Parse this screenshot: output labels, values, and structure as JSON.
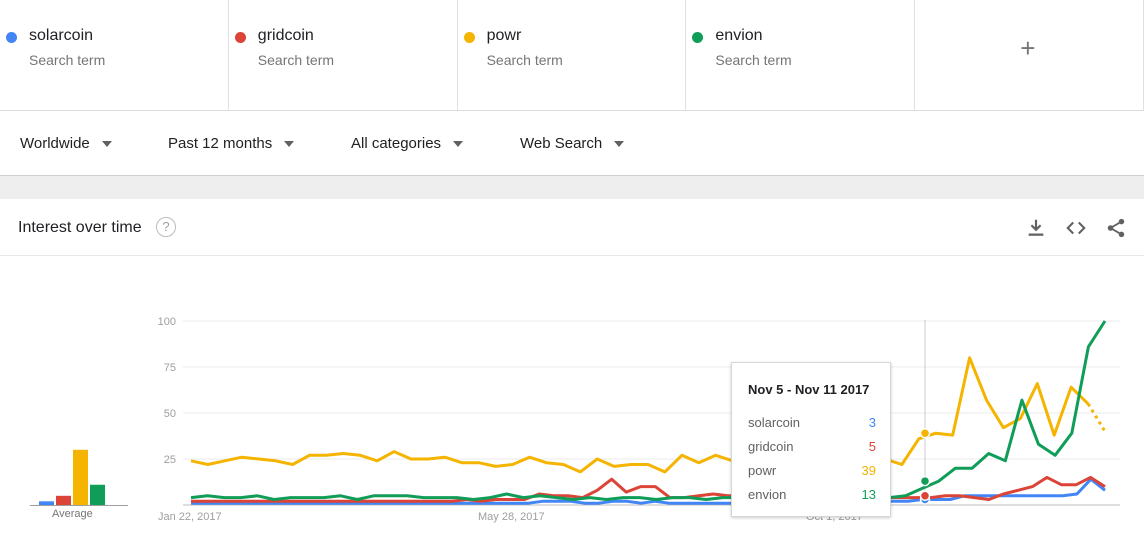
{
  "terms": [
    {
      "name": "solarcoin",
      "sub": "Search term",
      "color": "#4285f4"
    },
    {
      "name": "gridcoin",
      "sub": "Search term",
      "color": "#db4437"
    },
    {
      "name": "powr",
      "sub": "Search term",
      "color": "#f4b400"
    },
    {
      "name": "envion",
      "sub": "Search term",
      "color": "#0f9d58"
    }
  ],
  "add_term_label": "+",
  "filters": {
    "region": "Worldwide",
    "time": "Past 12 months",
    "category": "All categories",
    "search_type": "Web Search"
  },
  "card": {
    "title": "Interest over time",
    "help_icon": "question-circle-icon",
    "actions": [
      "download-icon",
      "embed-code-icon",
      "share-icon"
    ]
  },
  "average": {
    "label": "Average",
    "values": {
      "solarcoin": 2,
      "gridcoin": 5,
      "powr": 30,
      "envion": 11
    }
  },
  "chart_data": {
    "type": "line",
    "title": "",
    "xlabel": "",
    "ylabel": "",
    "ylim": [
      0,
      100
    ],
    "yticks": [
      "100",
      "75",
      "50",
      "25"
    ],
    "xticks": [
      "Jan 22, 2017",
      "May 28, 2017",
      "Oct 1, 2017"
    ],
    "grid": true,
    "series": [
      {
        "name": "solarcoin",
        "color": "#4285f4",
        "values": [
          1,
          1,
          1,
          1,
          1,
          1,
          1,
          1,
          1,
          1,
          1,
          1,
          1,
          1,
          1,
          1,
          1,
          1,
          1,
          1,
          1,
          1,
          1,
          1,
          1,
          2,
          2,
          2,
          1,
          1,
          2,
          2,
          1,
          2,
          1,
          1,
          1,
          1,
          1,
          1,
          1,
          1,
          1,
          1,
          1,
          1,
          1,
          2,
          2,
          2,
          2,
          2,
          3,
          3,
          3,
          5,
          5,
          5,
          5,
          5,
          5,
          5,
          5,
          6,
          14,
          8
        ]
      },
      {
        "name": "gridcoin",
        "color": "#db4437",
        "values": [
          2,
          2,
          2,
          2,
          2,
          2,
          2,
          2,
          2,
          2,
          2,
          2,
          2,
          2,
          2,
          2,
          2,
          2,
          2,
          3,
          2,
          3,
          3,
          3,
          6,
          5,
          5,
          4,
          8,
          14,
          7,
          10,
          10,
          4,
          4,
          5,
          6,
          5,
          5,
          5,
          5,
          5,
          4,
          4,
          4,
          4,
          4,
          4,
          4,
          4,
          4,
          4,
          5,
          5,
          4,
          3,
          6,
          8,
          10,
          15,
          11,
          11,
          15,
          10
        ]
      },
      {
        "name": "powr",
        "color": "#f4b400",
        "values": [
          24,
          22,
          24,
          26,
          25,
          24,
          22,
          27,
          27,
          28,
          27,
          24,
          29,
          25,
          25,
          26,
          23,
          23,
          21,
          22,
          26,
          23,
          22,
          18,
          25,
          21,
          22,
          22,
          18,
          27,
          23,
          27,
          24,
          21,
          20,
          27,
          21,
          22,
          22,
          21,
          23,
          25,
          22,
          36,
          39,
          38,
          80,
          57,
          42,
          47,
          66,
          38,
          64,
          55,
          40
        ]
      },
      {
        "name": "envion",
        "color": "#0f9d58",
        "values": [
          4,
          5,
          4,
          4,
          5,
          3,
          4,
          4,
          4,
          5,
          3,
          5,
          5,
          5,
          4,
          4,
          4,
          3,
          4,
          6,
          4,
          5,
          4,
          3,
          4,
          3,
          4,
          4,
          3,
          4,
          4,
          3,
          4,
          4,
          4,
          3,
          4,
          4,
          4,
          4,
          4,
          4,
          4,
          5,
          9,
          13,
          20,
          20,
          28,
          24,
          57,
          33,
          27,
          39,
          86,
          100
        ]
      }
    ]
  },
  "tooltip": {
    "title": "Nov 5 - Nov 11 2017",
    "rows": [
      {
        "term": "solarcoin",
        "value": "3",
        "color": "#4285f4"
      },
      {
        "term": "gridcoin",
        "value": "5",
        "color": "#db4437"
      },
      {
        "term": "powr",
        "value": "39",
        "color": "#f4b400"
      },
      {
        "term": "envion",
        "value": "13",
        "color": "#0f9d58"
      }
    ]
  }
}
